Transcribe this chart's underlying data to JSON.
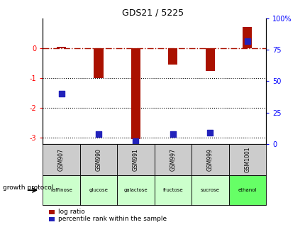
{
  "title": "GDS21 / 5225",
  "samples": [
    "GSM907",
    "GSM990",
    "GSM991",
    "GSM997",
    "GSM999",
    "GSM1001"
  ],
  "protocols": [
    "raffinose",
    "glucose",
    "galactose",
    "fructose",
    "sucrose",
    "ethanol"
  ],
  "log_ratios": [
    0.05,
    -1.0,
    -3.05,
    -0.55,
    -0.75,
    0.72
  ],
  "percentile_ranks": [
    40,
    8,
    2,
    8,
    9,
    82
  ],
  "bar_color": "#aa1100",
  "dot_color": "#2222bb",
  "background_color": "#ffffff",
  "ylim": [
    -3.2,
    1.0
  ],
  "y2lim": [
    0,
    100
  ],
  "yticks": [
    0,
    -1,
    -2,
    -3
  ],
  "y2ticks": [
    0,
    25,
    50,
    75,
    100
  ],
  "hline_y": 0,
  "dotted_lines": [
    -1,
    -2,
    -3
  ],
  "sample_cell_color": "#cccccc",
  "protocol_colors": {
    "raffinose": "#ccffcc",
    "glucose": "#ccffcc",
    "galactose": "#ccffcc",
    "fructose": "#ccffcc",
    "sucrose": "#ccffcc",
    "ethanol": "#66ff66"
  },
  "legend_log_ratio": "log ratio",
  "legend_percentile": "percentile rank within the sample",
  "growth_protocol_label": "growth protocol",
  "bar_width": 0.25,
  "dot_size": 35
}
